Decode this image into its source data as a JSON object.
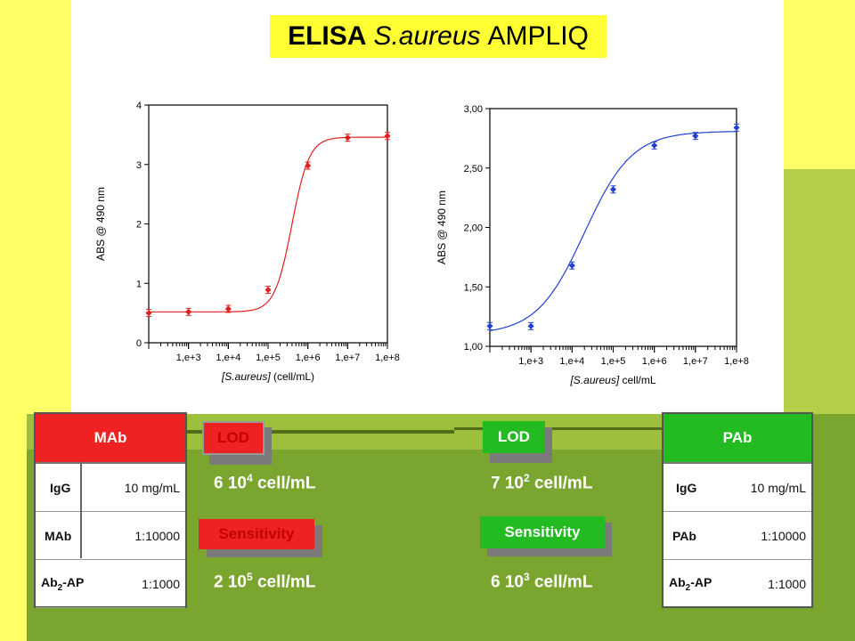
{
  "title": {
    "bold": "ELISA",
    "italic": "S.aureus",
    "rest": "AMPLIQ"
  },
  "colors": {
    "red_curve": "#e02020",
    "blue_curve": "#2040d0",
    "mab_header": "#ee2222",
    "pab_header": "#22bb22",
    "lod_red": "#ee2222",
    "lod_green": "#22bb22"
  },
  "mab_table": {
    "header": "MAb",
    "rows": [
      {
        "label": "IgG",
        "value": "10 mg/mL"
      },
      {
        "label": "MAb",
        "value": "1:10000"
      },
      {
        "label": "Ab",
        "label_sub": "2",
        "label_suffix": "-AP",
        "value": "1:1000"
      }
    ]
  },
  "pab_table": {
    "header": "PAb",
    "rows": [
      {
        "label": "IgG",
        "value": "10 mg/mL"
      },
      {
        "label": "PAb",
        "value": "1:10000"
      },
      {
        "label": "Ab",
        "label_sub": "2",
        "label_suffix": "-AP",
        "value": "1:1000"
      }
    ]
  },
  "left_results": {
    "lod_label": "LOD",
    "lod_value": "6 10",
    "lod_exp": "4",
    "lod_unit": " cell/mL",
    "sens_label": "Sensitivity",
    "sens_value": "2 10",
    "sens_exp": "5",
    "sens_unit": " cell/mL"
  },
  "right_results": {
    "lod_label": "LOD",
    "lod_value": "7 10",
    "lod_exp": "2",
    "lod_unit": " cell/mL",
    "sens_label": "Sensitivity",
    "sens_value": "6 10",
    "sens_exp": "3",
    "sens_unit": " cell/mL"
  },
  "chart_data": [
    {
      "type": "scatter",
      "title": "",
      "xlabel_italic": "[S.aureus]",
      "xlabel_rest": " (cell/mL)",
      "ylabel": "ABS @ 490 nm",
      "x_scale": "log",
      "xlim_log10": [
        2,
        8
      ],
      "ylim": [
        0,
        4
      ],
      "yticks": [
        "0",
        "1",
        "2",
        "3",
        "4"
      ],
      "xticks": [
        "1,e+3",
        "1,e+4",
        "1,e+5",
        "1,e+6",
        "1,e+7",
        "1,e+8"
      ],
      "color": "#e02020",
      "points": [
        {
          "log10x": 2.0,
          "y": 0.5
        },
        {
          "log10x": 3.0,
          "y": 0.52
        },
        {
          "log10x": 4.0,
          "y": 0.57
        },
        {
          "log10x": 5.0,
          "y": 0.89
        },
        {
          "log10x": 6.0,
          "y": 2.98
        },
        {
          "log10x": 7.0,
          "y": 3.45
        },
        {
          "log10x": 8.0,
          "y": 3.48
        }
      ],
      "fit": {
        "bottom": 0.52,
        "top": 3.46,
        "logEC50": 5.6,
        "hill": 2.0
      }
    },
    {
      "type": "scatter",
      "title": "",
      "xlabel_italic": "[S.aureus]",
      "xlabel_rest": " cell/mL",
      "ylabel": "ABS @ 490 nm",
      "x_scale": "log",
      "xlim_log10": [
        2,
        8
      ],
      "ylim": [
        1.0,
        3.0
      ],
      "yticks": [
        "1,00",
        "1,50",
        "2,00",
        "2,50",
        "3,00"
      ],
      "xticks": [
        "1,e+3",
        "1,e+4",
        "1,e+5",
        "1,e+6",
        "1,e+7",
        "1,e+8"
      ],
      "color": "#2040d0",
      "points": [
        {
          "log10x": 2.0,
          "y": 1.17
        },
        {
          "log10x": 3.0,
          "y": 1.17
        },
        {
          "log10x": 4.0,
          "y": 1.68
        },
        {
          "log10x": 5.0,
          "y": 2.32
        },
        {
          "log10x": 6.0,
          "y": 2.69
        },
        {
          "log10x": 7.0,
          "y": 2.77
        },
        {
          "log10x": 8.0,
          "y": 2.84
        }
      ],
      "fit": {
        "bottom": 1.1,
        "top": 2.81,
        "logEC50": 4.3,
        "hill": 0.75
      }
    }
  ]
}
